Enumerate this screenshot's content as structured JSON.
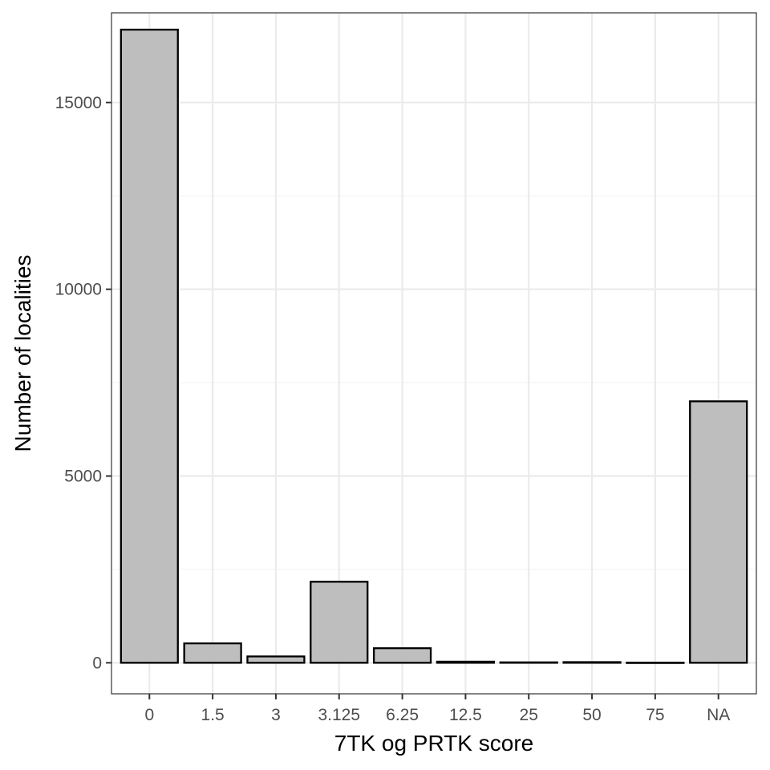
{
  "chart_data": {
    "type": "bar",
    "title": "",
    "xlabel": "7TK og PRTK score",
    "ylabel": "Number of localities",
    "categories": [
      "0",
      "1.5",
      "3",
      "3.125",
      "6.25",
      "12.5",
      "25",
      "50",
      "75",
      "NA"
    ],
    "values": [
      16950,
      520,
      170,
      2170,
      390,
      30,
      12,
      18,
      5,
      7000
    ],
    "ylim": [
      -830,
      17400
    ],
    "yticks": [
      0,
      5000,
      10000,
      15000
    ],
    "ytick_labels": [
      "0",
      "5000",
      "10000",
      "15000"
    ],
    "grid": true,
    "legend": "none",
    "colors": {
      "bar_fill": "#bebebe",
      "bar_stroke": "#000000",
      "grid": "#ebebeb",
      "panel_border": "#333333"
    }
  }
}
